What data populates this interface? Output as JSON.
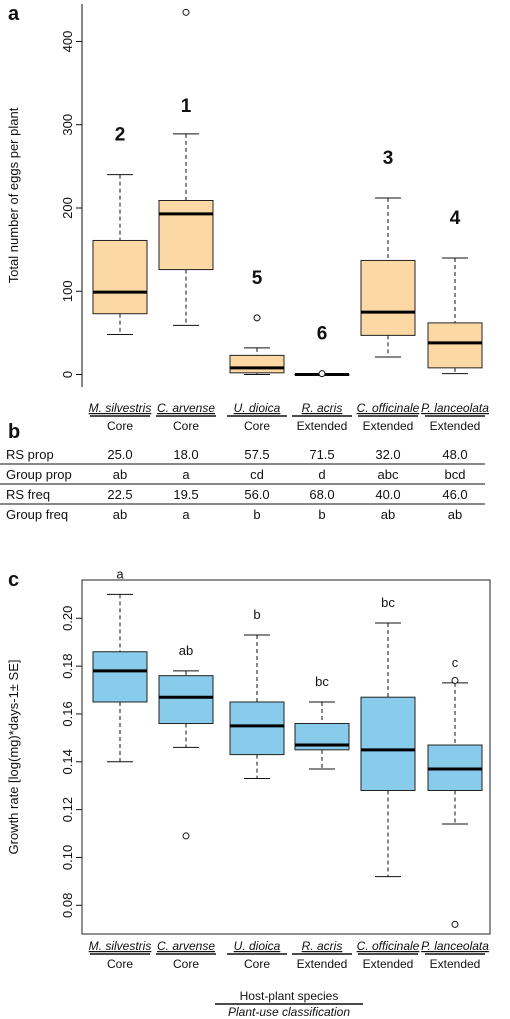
{
  "colors": {
    "box_a": "#fcd9a4",
    "box_c": "#88cbea",
    "median": "#000000",
    "frame": "#222222"
  },
  "species": [
    "M. silvestris",
    "C. arvense",
    "U. dioica",
    "R. acris",
    "C. officinale",
    "P. lanceolata"
  ],
  "use_class": [
    "Core",
    "Core",
    "Core",
    "Extended",
    "Extended",
    "Extended"
  ],
  "panel_b": {
    "letter": "b",
    "rows": [
      {
        "label": "RS prop",
        "values": [
          "25.0",
          "18.0",
          "57.5",
          "71.5",
          "32.0",
          "48.0"
        ]
      },
      {
        "label": "Group prop",
        "values": [
          "ab",
          "a",
          "cd",
          "d",
          "abc",
          "bcd"
        ]
      },
      {
        "label": "RS freq",
        "values": [
          "22.5",
          "19.5",
          "56.0",
          "68.0",
          "40.0",
          "46.0"
        ]
      },
      {
        "label": "Group freq",
        "values": [
          "ab",
          "a",
          "b",
          "b",
          "ab",
          "ab"
        ]
      }
    ]
  },
  "footer": {
    "line1": "Host-plant species",
    "line2": "Plant-use classification"
  },
  "chart_data": [
    {
      "panel": "a",
      "type": "box",
      "title": "",
      "xlabel": "",
      "ylabel": "Total number of eggs per plant",
      "ylim": [
        -15,
        445
      ],
      "yticks": [
        0,
        100,
        200,
        300,
        400
      ],
      "categories": [
        "M. silvestris",
        "C. arvense",
        "U. dioica",
        "R. acris",
        "C. officinale",
        "P. lanceolata"
      ],
      "boxes": [
        {
          "min": 48,
          "q1": 73,
          "median": 99,
          "q3": 161,
          "max": 240,
          "outliers": []
        },
        {
          "min": 59,
          "q1": 126,
          "median": 193,
          "q3": 209,
          "max": 289,
          "outliers": [
            435
          ]
        },
        {
          "min": 0,
          "q1": 2,
          "median": 8,
          "q3": 23,
          "max": 32,
          "outliers": [
            68
          ]
        },
        {
          "min": 0,
          "q1": 0,
          "median": 0,
          "q3": 0,
          "max": 0,
          "outliers": [
            1
          ]
        },
        {
          "min": 21,
          "q1": 47,
          "median": 75,
          "q3": 137,
          "max": 212,
          "outliers": []
        },
        {
          "min": 1,
          "q1": 8,
          "median": 38,
          "q3": 62,
          "max": 140,
          "outliers": []
        }
      ],
      "annotations": [
        "2",
        "1",
        "5",
        "6",
        "3",
        "4"
      ]
    },
    {
      "panel": "c",
      "type": "box",
      "title": "",
      "xlabel": "",
      "ylabel": "Growth rate [log(mg)*days-1± SE]",
      "ylim": [
        0.068,
        0.216
      ],
      "yticks": [
        0.08,
        0.1,
        0.12,
        0.14,
        0.16,
        0.18,
        0.2
      ],
      "categories": [
        "M. silvestris",
        "C. arvense",
        "U. dioica",
        "R. acris",
        "C. officinale",
        "P. lanceolata"
      ],
      "boxes": [
        {
          "min": 0.14,
          "q1": 0.165,
          "median": 0.178,
          "q3": 0.186,
          "max": 0.21,
          "outliers": []
        },
        {
          "min": 0.146,
          "q1": 0.156,
          "median": 0.167,
          "q3": 0.176,
          "max": 0.178,
          "outliers": [
            0.109
          ]
        },
        {
          "min": 0.133,
          "q1": 0.143,
          "median": 0.155,
          "q3": 0.165,
          "max": 0.193,
          "outliers": []
        },
        {
          "min": 0.137,
          "q1": 0.145,
          "median": 0.147,
          "q3": 0.156,
          "max": 0.165,
          "outliers": []
        },
        {
          "min": 0.092,
          "q1": 0.128,
          "median": 0.145,
          "q3": 0.167,
          "max": 0.198,
          "outliers": []
        },
        {
          "min": 0.114,
          "q1": 0.128,
          "median": 0.137,
          "q3": 0.147,
          "max": 0.173,
          "outliers": [
            0.174,
            0.072
          ]
        }
      ],
      "annotations": [
        "a",
        "ab",
        "b",
        "bc",
        "bc",
        "c"
      ]
    }
  ]
}
